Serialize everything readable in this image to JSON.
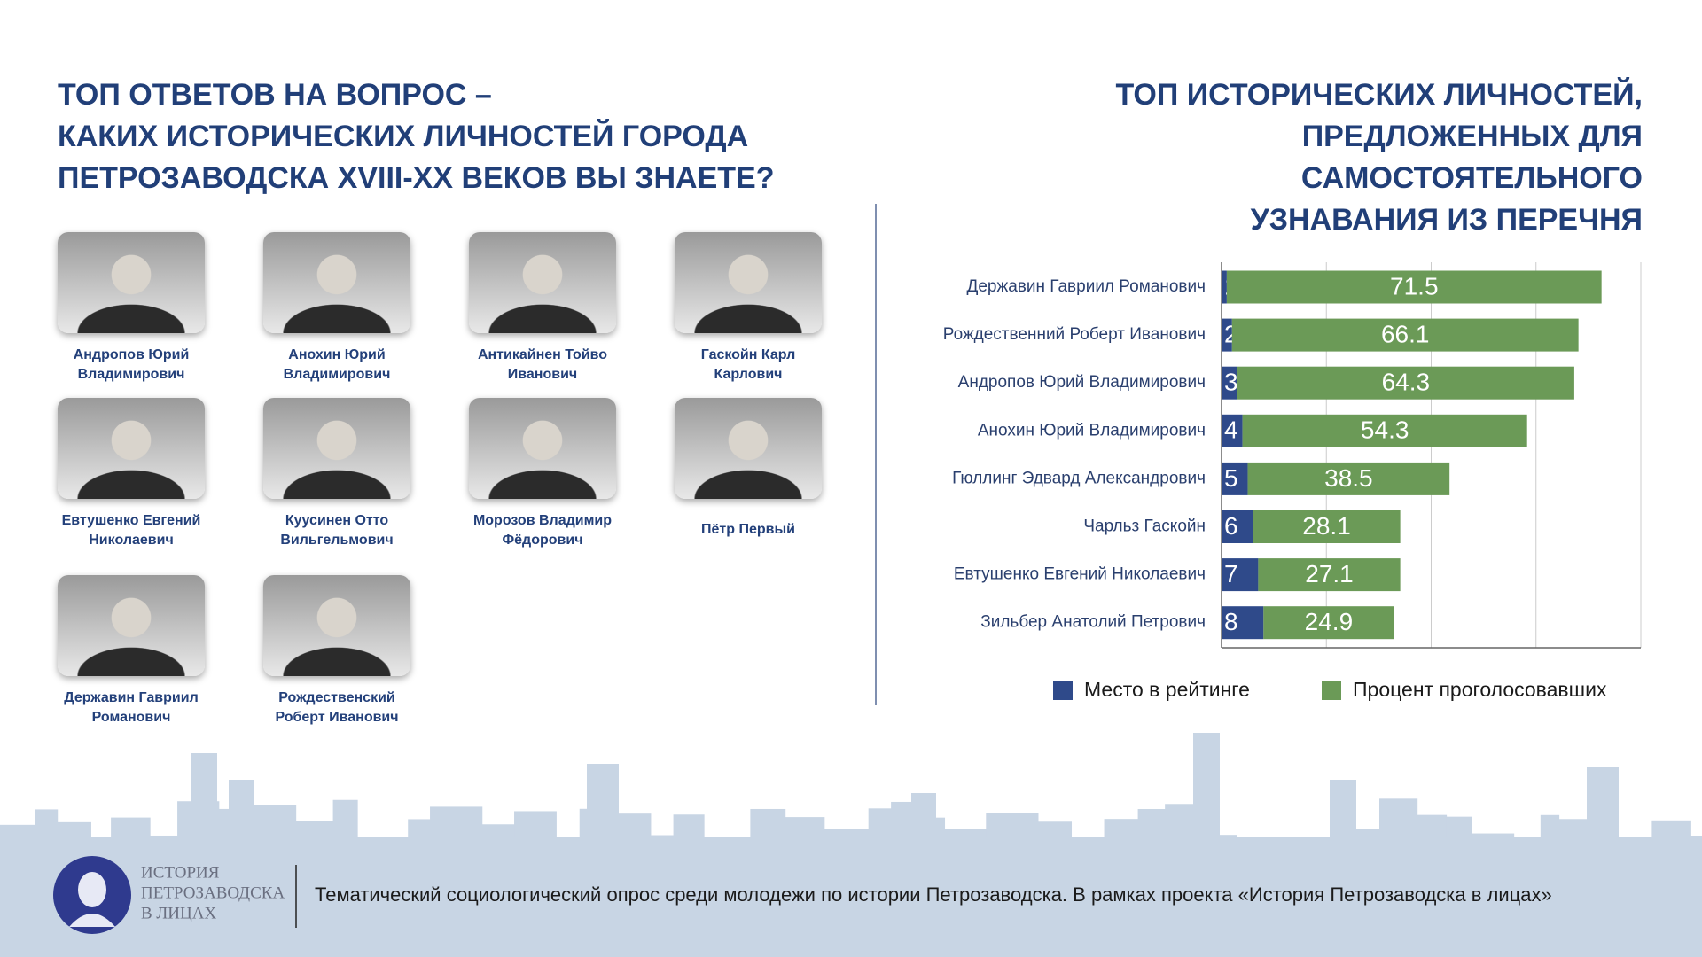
{
  "left": {
    "title": [
      "ТОП ОТВЕТОВ НА ВОПРОС –",
      "КАКИХ ИСТОРИЧЕСКИХ ЛИЧНОСТЕЙ ГОРОДА",
      "ПЕТРОЗАВОДСКА XVIII-XX ВЕКОВ ВЫ ЗНАЕТЕ?"
    ],
    "people": [
      {
        "name": [
          "Андропов Юрий",
          "Владимирович"
        ]
      },
      {
        "name": [
          "Анохин Юрий",
          "Владимирович"
        ]
      },
      {
        "name": [
          "Антикайнен Тойво",
          "Иванович"
        ]
      },
      {
        "name": [
          "Гаскойн Карл",
          "Карлович"
        ]
      },
      {
        "name": [
          "Евтушенко Евгений",
          "Николаевич"
        ]
      },
      {
        "name": [
          "Куусинен Отто",
          "Вильгельмович"
        ]
      },
      {
        "name": [
          "Морозов Владимир",
          "Фёдорович"
        ]
      },
      {
        "name": [
          "Пётр Первый"
        ]
      },
      {
        "name": [
          "Державин Гавриил",
          "Романович"
        ]
      },
      {
        "name": [
          "Рождественский",
          "Роберт Иванович"
        ]
      }
    ]
  },
  "chart_data": {
    "type": "bar",
    "orientation": "horizontal",
    "stacked": true,
    "title": [
      "ТОП ИСТОРИЧЕСКИХ ЛИЧНОСТЕЙ,",
      "ПРЕДЛОЖЕННЫХ ДЛЯ",
      "САМОСТОЯТЕЛЬНОГО",
      "УЗНАВАНИЯ ИЗ ПЕРЕЧНЯ"
    ],
    "categories": [
      "Державин Гавриил Романович",
      "Рождественний Роберт Иванович",
      "Андропов Юрий Владимирович",
      "Анохин Юрий Владимирович",
      "Гюллинг Эдвард Александрович",
      "Чарльз Гаскойн",
      "Евтушенко Евгений Николаевич",
      "Зильбер Анатолий Петрович"
    ],
    "series": [
      {
        "name": "Место в рейтинге",
        "color": "#2f4a8a",
        "values": [
          1,
          2,
          3,
          4,
          5,
          6,
          7,
          8
        ]
      },
      {
        "name": "Процент проголосовавших",
        "color": "#6b9a57",
        "values": [
          71.5,
          66.1,
          64.3,
          54.3,
          38.5,
          28.1,
          27.1,
          24.9
        ]
      }
    ],
    "xlim": [
      0,
      80
    ],
    "xticks": [
      0,
      20,
      40,
      60,
      80
    ],
    "grid": true,
    "legend": "bottom"
  },
  "footer": {
    "logo": [
      "ИСТОРИЯ",
      "ПЕТРОЗАВОДСКА",
      "В ЛИЦАХ"
    ],
    "text": "Тематический социологический опрос среди молодежи по истории Петрозаводска. В рамках проекта «История Петрозаводска в лицах»"
  }
}
